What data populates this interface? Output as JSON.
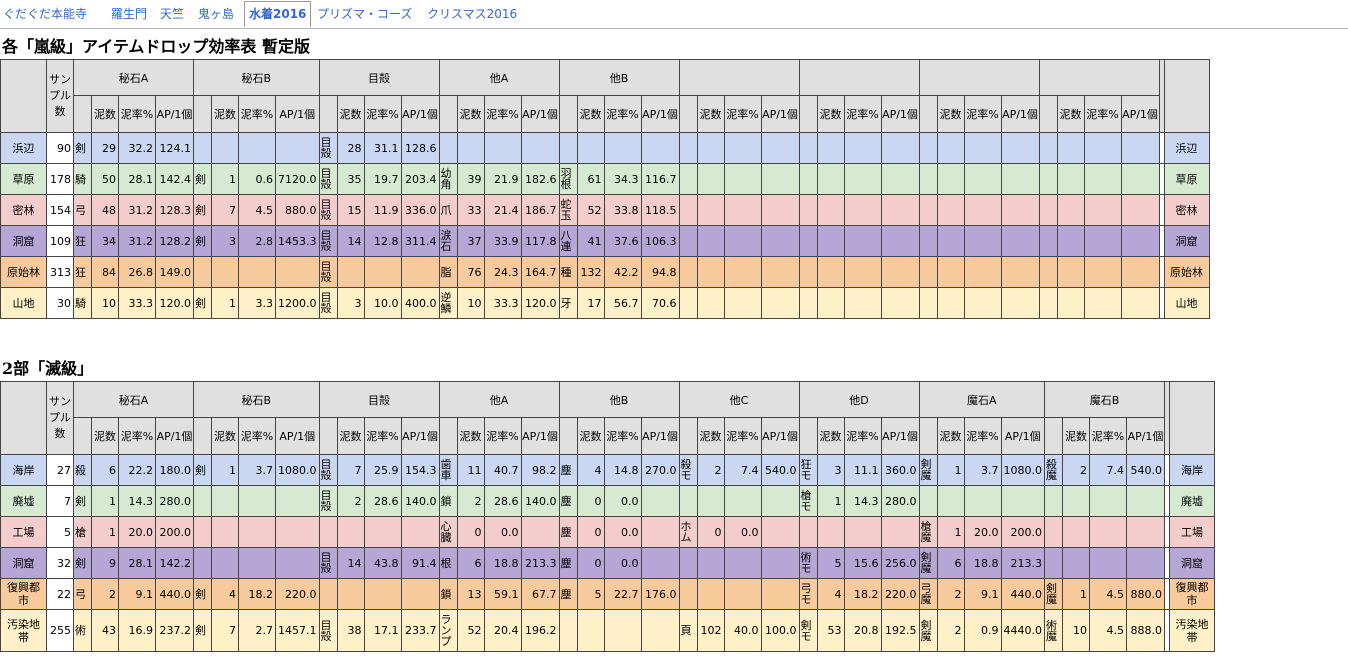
{
  "tabs": [
    {
      "label": "ぐだぐだ本能寺",
      "active": false
    },
    {
      "label": "羅生門",
      "active": false
    },
    {
      "label": "天竺",
      "active": false
    },
    {
      "label": "鬼ヶ島",
      "active": false
    },
    {
      "label": "水着2016",
      "active": true
    },
    {
      "label": "プリズマ・コーズ",
      "active": false
    },
    {
      "label": "クリスマス2016",
      "active": false
    }
  ],
  "section1": {
    "title": "各「嵐級」アイテムドロップ効率表 暫定版",
    "sample_header": "サンプル数",
    "groups": [
      "秘石A",
      "秘石B",
      "目殻",
      "他A",
      "他B",
      "",
      "",
      "",
      ""
    ],
    "sub_headers": [
      "泥数",
      "泥率%",
      "AP/1個"
    ],
    "rows": [
      {
        "label": "浜辺",
        "sample": "90",
        "cells": [
          [
            "剣",
            "29",
            "32.2",
            "124.1"
          ],
          [
            "",
            "",
            "",
            ""
          ],
          [
            "目殻",
            "28",
            "31.1",
            "128.6"
          ],
          [
            "",
            "",
            "",
            ""
          ],
          [
            "",
            "",
            "",
            ""
          ],
          [
            "",
            "",
            "",
            ""
          ],
          [
            "",
            "",
            "",
            ""
          ],
          [
            "",
            "",
            "",
            ""
          ],
          [
            "",
            "",
            "",
            ""
          ]
        ]
      },
      {
        "label": "草原",
        "sample": "178",
        "cells": [
          [
            "騎",
            "50",
            "28.1",
            "142.4"
          ],
          [
            "剣",
            "1",
            "0.6",
            "7120.0"
          ],
          [
            "目殻",
            "35",
            "19.7",
            "203.4"
          ],
          [
            "幼角",
            "39",
            "21.9",
            "182.6"
          ],
          [
            "羽根",
            "61",
            "34.3",
            "116.7"
          ],
          [
            "",
            "",
            "",
            ""
          ],
          [
            "",
            "",
            "",
            ""
          ],
          [
            "",
            "",
            "",
            ""
          ],
          [
            "",
            "",
            "",
            ""
          ]
        ]
      },
      {
        "label": "密林",
        "sample": "154",
        "cells": [
          [
            "弓",
            "48",
            "31.2",
            "128.3"
          ],
          [
            "剣",
            "7",
            "4.5",
            "880.0"
          ],
          [
            "目殻",
            "15",
            "11.9",
            "336.0"
          ],
          [
            "爪",
            "33",
            "21.4",
            "186.7"
          ],
          [
            "蛇玉",
            "52",
            "33.8",
            "118.5"
          ],
          [
            "",
            "",
            "",
            ""
          ],
          [
            "",
            "",
            "",
            ""
          ],
          [
            "",
            "",
            "",
            ""
          ],
          [
            "",
            "",
            "",
            ""
          ]
        ]
      },
      {
        "label": "洞窟",
        "sample": "109",
        "cells": [
          [
            "狂",
            "34",
            "31.2",
            "128.2"
          ],
          [
            "剣",
            "3",
            "2.8",
            "1453.3"
          ],
          [
            "目殻",
            "14",
            "12.8",
            "311.4"
          ],
          [
            "涙石",
            "37",
            "33.9",
            "117.8"
          ],
          [
            "八連",
            "41",
            "37.6",
            "106.3"
          ],
          [
            "",
            "",
            "",
            ""
          ],
          [
            "",
            "",
            "",
            ""
          ],
          [
            "",
            "",
            "",
            ""
          ],
          [
            "",
            "",
            "",
            ""
          ]
        ]
      },
      {
        "label": "原始林",
        "sample": "313",
        "cells": [
          [
            "狂",
            "84",
            "26.8",
            "149.0"
          ],
          [
            "",
            "",
            "",
            ""
          ],
          [
            "目殻",
            "",
            "",
            ""
          ],
          [
            "脂",
            "76",
            "24.3",
            "164.7"
          ],
          [
            "種",
            "132",
            "42.2",
            "94.8"
          ],
          [
            "",
            "",
            "",
            ""
          ],
          [
            "",
            "",
            "",
            ""
          ],
          [
            "",
            "",
            "",
            ""
          ],
          [
            "",
            "",
            "",
            ""
          ]
        ]
      },
      {
        "label": "山地",
        "sample": "30",
        "cells": [
          [
            "騎",
            "10",
            "33.3",
            "120.0"
          ],
          [
            "剣",
            "1",
            "3.3",
            "1200.0"
          ],
          [
            "目殻",
            "3",
            "10.0",
            "400.0"
          ],
          [
            "逆鱗",
            "10",
            "33.3",
            "120.0"
          ],
          [
            "牙",
            "17",
            "56.7",
            "70.6"
          ],
          [
            "",
            "",
            "",
            ""
          ],
          [
            "",
            "",
            "",
            ""
          ],
          [
            "",
            "",
            "",
            ""
          ],
          [
            "",
            "",
            "",
            ""
          ]
        ]
      }
    ]
  },
  "section2": {
    "title": "2部「滅級」",
    "sample_header": "サンプル数",
    "groups": [
      "秘石A",
      "秘石B",
      "目殻",
      "他A",
      "他B",
      "他C",
      "他D",
      "魔石A",
      "魔石B"
    ],
    "sub_headers": [
      "泥数",
      "泥率%",
      "AP/1個"
    ],
    "rows": [
      {
        "label": "海岸",
        "sample": "27",
        "cells": [
          [
            "殺",
            "6",
            "22.2",
            "180.0"
          ],
          [
            "剣",
            "1",
            "3.7",
            "1080.0"
          ],
          [
            "目殻",
            "7",
            "25.9",
            "154.3"
          ],
          [
            "歯車",
            "11",
            "40.7",
            "98.2"
          ],
          [
            "塵",
            "4",
            "14.8",
            "270.0"
          ],
          [
            "殺モ",
            "2",
            "7.4",
            "540.0"
          ],
          [
            "狂モ",
            "3",
            "11.1",
            "360.0"
          ],
          [
            "剣魔",
            "1",
            "3.7",
            "1080.0"
          ],
          [
            "殺魔",
            "2",
            "7.4",
            "540.0"
          ]
        ]
      },
      {
        "label": "廃墟",
        "sample": "7",
        "cells": [
          [
            "剣",
            "1",
            "14.3",
            "280.0"
          ],
          [
            "",
            "",
            "",
            ""
          ],
          [
            "目殻",
            "2",
            "28.6",
            "140.0"
          ],
          [
            "鎖",
            "2",
            "28.6",
            "140.0"
          ],
          [
            "塵",
            "0",
            "0.0",
            ""
          ],
          [
            "",
            "",
            "",
            ""
          ],
          [
            "槍モ",
            "1",
            "14.3",
            "280.0"
          ],
          [
            "",
            "",
            "",
            ""
          ],
          [
            "",
            "",
            "",
            ""
          ]
        ]
      },
      {
        "label": "工場",
        "sample": "5",
        "cells": [
          [
            "槍",
            "1",
            "20.0",
            "200.0"
          ],
          [
            "",
            "",
            "",
            ""
          ],
          [
            "",
            "",
            "",
            ""
          ],
          [
            "心臓",
            "0",
            "0.0",
            ""
          ],
          [
            "塵",
            "0",
            "0.0",
            ""
          ],
          [
            "ホム",
            "0",
            "0.0",
            ""
          ],
          [
            "",
            "",
            "",
            ""
          ],
          [
            "槍魔",
            "1",
            "20.0",
            "200.0"
          ],
          [
            "",
            "",
            "",
            ""
          ]
        ]
      },
      {
        "label": "洞窟",
        "sample": "32",
        "cells": [
          [
            "剣",
            "9",
            "28.1",
            "142.2"
          ],
          [
            "",
            "",
            "",
            ""
          ],
          [
            "目殻",
            "14",
            "43.8",
            "91.4"
          ],
          [
            "根",
            "6",
            "18.8",
            "213.3"
          ],
          [
            "塵",
            "0",
            "0.0",
            ""
          ],
          [
            "",
            "",
            "",
            ""
          ],
          [
            "術モ",
            "5",
            "15.6",
            "256.0"
          ],
          [
            "剣魔",
            "6",
            "18.8",
            "213.3"
          ],
          [
            "",
            "",
            "",
            ""
          ]
        ]
      },
      {
        "label": "復興都市",
        "sample": "22",
        "cells": [
          [
            "弓",
            "2",
            "9.1",
            "440.0"
          ],
          [
            "剣",
            "4",
            "18.2",
            "220.0"
          ],
          [
            "",
            "",
            "",
            ""
          ],
          [
            "鎖",
            "13",
            "59.1",
            "67.7"
          ],
          [
            "塵",
            "5",
            "22.7",
            "176.0"
          ],
          [
            "",
            "",
            "",
            ""
          ],
          [
            "弓モ",
            "4",
            "18.2",
            "220.0"
          ],
          [
            "弓魔",
            "2",
            "9.1",
            "440.0"
          ],
          [
            "剣魔",
            "1",
            "4.5",
            "880.0"
          ]
        ]
      },
      {
        "label": "汚染地帯",
        "sample": "255",
        "cells": [
          [
            "術",
            "43",
            "16.9",
            "237.2"
          ],
          [
            "剣",
            "7",
            "2.7",
            "1457.1"
          ],
          [
            "目殻",
            "38",
            "17.1",
            "233.7"
          ],
          [
            "ランプ",
            "52",
            "20.4",
            "196.2"
          ],
          [
            "",
            "",
            "",
            ""
          ],
          [
            "頁",
            "102",
            "40.0",
            "100.0"
          ],
          [
            "剣モ",
            "53",
            "20.8",
            "192.5"
          ],
          [
            "剣魔",
            "2",
            "0.9",
            "4440.0"
          ],
          [
            "術魔",
            "10",
            "4.5",
            "888.0"
          ]
        ]
      }
    ]
  },
  "colors": {
    "row_bg": [
      "#c9d7f3",
      "#d6ead2",
      "#f3cccc",
      "#b4a7d6",
      "#f9cb9c",
      "#fff0c7"
    ],
    "header_bg": "#e0e0e0",
    "link": "#3366cc"
  }
}
